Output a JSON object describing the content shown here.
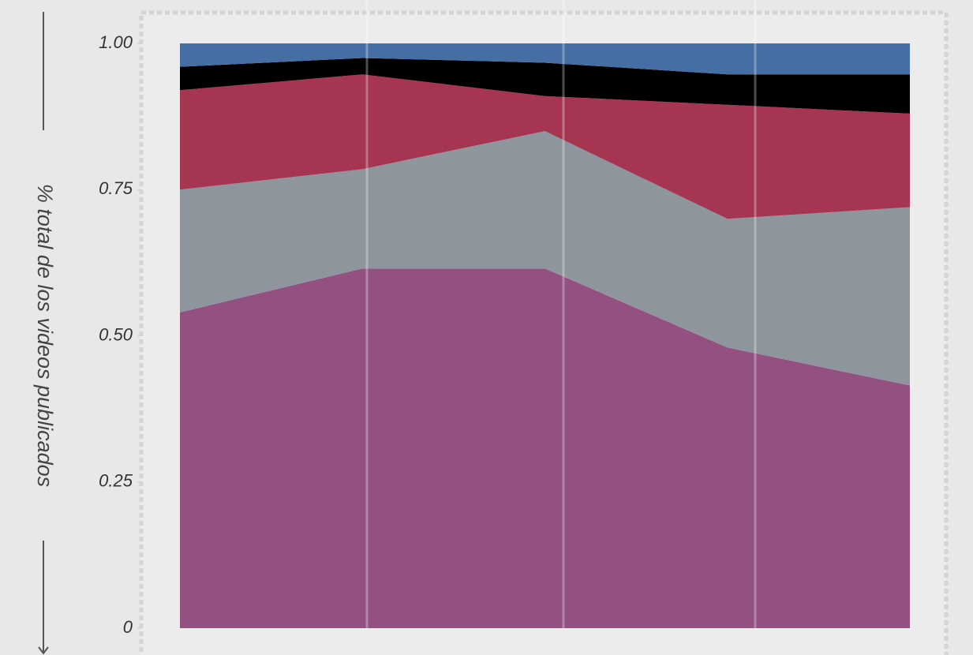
{
  "chart_data": {
    "type": "stacked_area",
    "y_label": "% total de los videos publicados",
    "categories": [
      null,
      null,
      null,
      null,
      null
    ],
    "series": [
      {
        "color": "#925180",
        "values": [
          0.54,
          0.615,
          0.615,
          0.48,
          0.415
        ]
      },
      {
        "color": "#8e959c",
        "values": [
          0.21,
          0.17,
          0.235,
          0.22,
          0.305
        ]
      },
      {
        "color": "#a63552",
        "values": [
          0.17,
          0.162,
          0.06,
          0.195,
          0.16
        ]
      },
      {
        "color": "#000000",
        "values": [
          0.04,
          0.028,
          0.057,
          0.052,
          0.067
        ]
      },
      {
        "color": "#456ea5",
        "values": [
          0.04,
          0.025,
          0.033,
          0.053,
          0.053
        ]
      }
    ],
    "ylim": [
      0,
      1
    ],
    "yticks": [
      0,
      0.25,
      {
        "value": 0.5,
        "label": "0.50"
      },
      0.75,
      {
        "value": 1,
        "label": "1.00"
      }
    ]
  }
}
